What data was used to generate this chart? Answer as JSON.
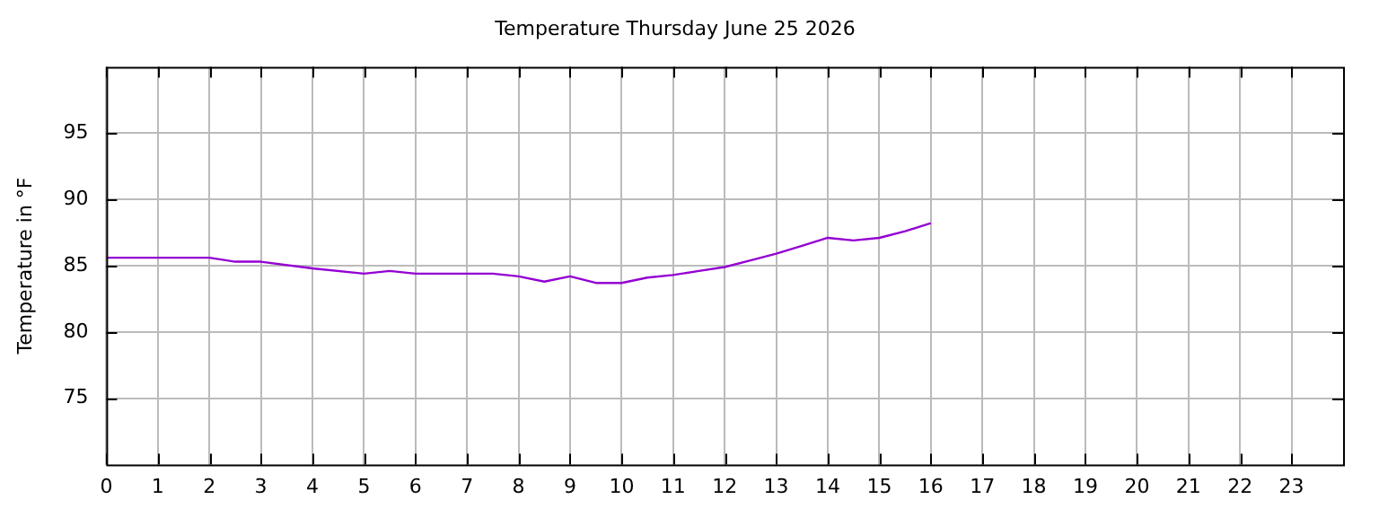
{
  "chart_data": {
    "type": "line",
    "title": "Temperature Thursday June 25 2026",
    "ylabel": "Temperature in °F",
    "x": [
      0,
      2,
      2.5,
      3,
      4,
      5,
      5.5,
      6,
      7.5,
      8,
      8.5,
      9,
      9.5,
      10,
      10.5,
      11,
      11.5,
      12,
      12.5,
      13,
      13.5,
      14,
      14.5,
      15,
      15.5,
      16
    ],
    "series": [
      {
        "color": "#9400d3",
        "values": [
          85.6,
          85.6,
          85.3,
          85.3,
          84.8,
          84.4,
          84.6,
          84.4,
          84.4,
          84.2,
          83.8,
          84.2,
          83.7,
          83.7,
          84.1,
          84.3,
          84.6,
          84.9,
          85.4,
          85.9,
          86.5,
          87.1,
          86.9,
          87.1,
          87.6,
          88.2
        ]
      }
    ],
    "xlim": [
      0,
      24
    ],
    "xticks": [
      0,
      1,
      2,
      3,
      4,
      5,
      6,
      7,
      8,
      9,
      10,
      11,
      12,
      13,
      14,
      15,
      16,
      17,
      18,
      19,
      20,
      21,
      22,
      23
    ],
    "ylim": [
      70,
      100
    ],
    "yticks": [
      75,
      80,
      85,
      90,
      95
    ],
    "grid": true,
    "legend": false,
    "marker": "none",
    "line_style": "solid"
  }
}
